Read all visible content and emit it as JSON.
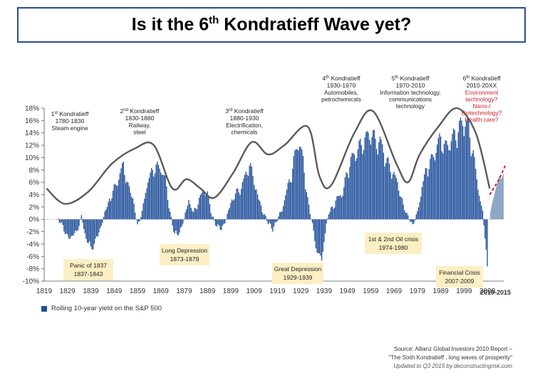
{
  "title_main": "Is it the 6",
  "title_sup": "th",
  "title_end": " Kondratieff Wave yet?",
  "colors": {
    "bars": "#1f4e9a",
    "recent_area": "#8fa7c7",
    "wave": "#5a5a5a",
    "forecast": "#d0202a",
    "callout_bg": "#fcefc4",
    "title_border": "#2a4f8f"
  },
  "legend_label": "Rolling 10-year yield on the S&P 500",
  "source": {
    "line1": "Source: Allianz Global Investors 2010 Report –",
    "line2": "\"The Sixth Kondratieff , long waves of prosperity\"",
    "line3": "Updated to  Q3 2015 by deconstructingrisk.com"
  },
  "waves": [
    {
      "name": "1st Kondratieff",
      "period": "1780-1830",
      "desc": [
        "Steam engine"
      ]
    },
    {
      "name": "2nd Kondratieff",
      "period": "1830-1880",
      "desc": [
        "Railway,",
        "steel"
      ]
    },
    {
      "name": "3rd Kondratieff",
      "period": "1880-1930",
      "desc": [
        "Electrification,",
        "chemicals"
      ]
    },
    {
      "name": "4th Kondratieff",
      "period": "1930-1970",
      "desc": [
        "Automobiles,",
        "petrochemicals"
      ]
    },
    {
      "name": "5th Kondratieff",
      "period": "1970-2010",
      "desc": [
        "Information technology,",
        "communications",
        "technology"
      ]
    },
    {
      "name": "6th Kondratieff",
      "period": "2010-20XX",
      "desc": [
        "Environment",
        "technology?",
        "Nano-/",
        "Biotechnology?",
        "Health care?"
      ]
    }
  ],
  "callouts": [
    {
      "title": "Panic of 1837",
      "years": "1837-1843"
    },
    {
      "title": "Long Depression",
      "years": "1873-1879"
    },
    {
      "title": "Great Depression",
      "years": "1929-1939"
    },
    {
      "title": "1st & 2nd Oil crisis",
      "years": "1974-1980"
    },
    {
      "title": "Financial Crisis",
      "years": "2007-2009"
    }
  ],
  "chart_data": {
    "type": "bar",
    "title": "Is it the 6th Kondratieff Wave yet?",
    "series_name": "Rolling 10-year yield on the S&P 500",
    "xlim": [
      1819,
      2016
    ],
    "ylim": [
      -10,
      18
    ],
    "yticks": [
      -10,
      -8,
      -6,
      -4,
      -2,
      0,
      2,
      4,
      6,
      8,
      10,
      12,
      14,
      16,
      18
    ],
    "ytick_labels": [
      "-10%",
      "-8%",
      "-6%",
      "-4%",
      "-2%",
      "0%",
      "2%",
      "4%",
      "6%",
      "8%",
      "10%",
      "12%",
      "14%",
      "16%",
      "18%"
    ],
    "xticks": [
      1819,
      1829,
      1839,
      1849,
      1859,
      1869,
      1879,
      1889,
      1899,
      1909,
      1919,
      1929,
      1939,
      1949,
      1959,
      1969,
      1979,
      1989,
      1999,
      2009
    ],
    "xtick_labels": [
      "1819",
      "1829",
      "1839",
      "1849",
      "1859",
      "1869",
      "1879",
      "1889",
      "1899",
      "1909",
      "1919",
      "1929",
      "1939",
      "1949",
      "1959",
      "1969",
      "1979",
      "1989",
      "1999",
      "2009"
    ],
    "extra_xlabel": "2010-2015",
    "yield_anchors": [
      [
        1825,
        0
      ],
      [
        1827,
        -1
      ],
      [
        1829,
        -3
      ],
      [
        1831,
        -2.5
      ],
      [
        1833,
        -2
      ],
      [
        1835,
        0.5
      ],
      [
        1837,
        -3
      ],
      [
        1839,
        -4.5
      ],
      [
        1841,
        -3.5
      ],
      [
        1843,
        -1.5
      ],
      [
        1845,
        1
      ],
      [
        1847,
        3
      ],
      [
        1850,
        5.5
      ],
      [
        1853,
        8.5
      ],
      [
        1855,
        5
      ],
      [
        1857,
        3.5
      ],
      [
        1859,
        -1
      ],
      [
        1861,
        1
      ],
      [
        1863,
        5.5
      ],
      [
        1866,
        8
      ],
      [
        1869,
        8
      ],
      [
        1871,
        6
      ],
      [
        1873,
        1
      ],
      [
        1875,
        -2.5
      ],
      [
        1877,
        -2
      ],
      [
        1879,
        0
      ],
      [
        1881,
        3
      ],
      [
        1883,
        1
      ],
      [
        1885,
        2.5
      ],
      [
        1887,
        4.5
      ],
      [
        1889,
        4
      ],
      [
        1891,
        0.5
      ],
      [
        1893,
        -1
      ],
      [
        1895,
        -1.5
      ],
      [
        1897,
        0
      ],
      [
        1899,
        2.5
      ],
      [
        1901,
        4
      ],
      [
        1903,
        4.5
      ],
      [
        1905,
        6.5
      ],
      [
        1907,
        8.5
      ],
      [
        1909,
        6
      ],
      [
        1911,
        3
      ],
      [
        1913,
        1
      ],
      [
        1915,
        -0.5
      ],
      [
        1917,
        -1.5
      ],
      [
        1919,
        0
      ],
      [
        1921,
        1.5
      ],
      [
        1923,
        4.5
      ],
      [
        1925,
        7
      ],
      [
        1928,
        12.5
      ],
      [
        1930,
        9
      ],
      [
        1932,
        3
      ],
      [
        1934,
        -1
      ],
      [
        1936,
        -5
      ],
      [
        1938,
        -6.5
      ],
      [
        1939,
        -3
      ],
      [
        1941,
        1
      ],
      [
        1943,
        2
      ],
      [
        1945,
        3.5
      ],
      [
        1947,
        4
      ],
      [
        1949,
        7.5
      ],
      [
        1951,
        9.5
      ],
      [
        1953,
        10.5
      ],
      [
        1956,
        12
      ],
      [
        1959,
        13.5
      ],
      [
        1961,
        12
      ],
      [
        1963,
        12
      ],
      [
        1965,
        10
      ],
      [
        1967,
        8
      ],
      [
        1969,
        7
      ],
      [
        1971,
        5
      ],
      [
        1973,
        2
      ],
      [
        1975,
        0.5
      ],
      [
        1977,
        -1
      ],
      [
        1979,
        1
      ],
      [
        1981,
        5
      ],
      [
        1983,
        8
      ],
      [
        1985,
        9
      ],
      [
        1987,
        11
      ],
      [
        1989,
        12.5
      ],
      [
        1991,
        11
      ],
      [
        1993,
        12
      ],
      [
        1995,
        13
      ],
      [
        1997,
        14
      ],
      [
        1999,
        15.5
      ],
      [
        2001,
        14
      ],
      [
        2003,
        10
      ],
      [
        2005,
        5
      ],
      [
        2007,
        1
      ],
      [
        2008,
        -3
      ],
      [
        2009,
        -7.5
      ]
    ],
    "recent_area": [
      [
        2010.2,
        1
      ],
      [
        2011,
        2.5
      ],
      [
        2012,
        4
      ],
      [
        2013,
        5.5
      ],
      [
        2014,
        7
      ],
      [
        2015,
        6.5
      ],
      [
        2016,
        7.5
      ]
    ],
    "wave_path": [
      [
        1820,
        5
      ],
      [
        1828,
        2.5
      ],
      [
        1838,
        4.5
      ],
      [
        1848,
        9
      ],
      [
        1858,
        11.5
      ],
      [
        1866,
        12
      ],
      [
        1874,
        5
      ],
      [
        1880,
        6.5
      ],
      [
        1886,
        5
      ],
      [
        1892,
        3.5
      ],
      [
        1900,
        7.5
      ],
      [
        1908,
        12.5
      ],
      [
        1915,
        10.5
      ],
      [
        1922,
        12
      ],
      [
        1932,
        15
      ],
      [
        1937,
        7
      ],
      [
        1942,
        5.5
      ],
      [
        1952,
        14
      ],
      [
        1960,
        17.5
      ],
      [
        1970,
        9
      ],
      [
        1975,
        6
      ],
      [
        1980,
        10.5
      ],
      [
        1988,
        15
      ],
      [
        1996,
        18
      ],
      [
        2004,
        14
      ],
      [
        2010,
        5
      ]
    ],
    "forecast_path": [
      [
        2010,
        4
      ],
      [
        2014,
        6.5
      ],
      [
        2017,
        9
      ]
    ]
  }
}
